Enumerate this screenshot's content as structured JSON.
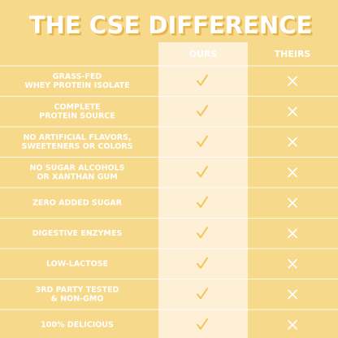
{
  "header": {
    "title": "THE CSE DIFFERENCE"
  },
  "columns": [
    "OURS",
    "THEIRS"
  ],
  "rows": [
    {
      "label": [
        "GRASS-FED",
        "WHEY PROTEIN ISOLATE"
      ]
    },
    {
      "label": [
        "COMPLETE",
        "PROTEIN SOURCE"
      ]
    },
    {
      "label": [
        "NO ARTIFICIAL FLAVORS,",
        "SWEETENERS OR COLORS"
      ]
    },
    {
      "label": [
        "NO SUGAR ALCOHOLS",
        "OR XANTHAN GUM"
      ]
    },
    {
      "label": [
        "ZERO ADDED SUGAR"
      ]
    },
    {
      "label": [
        "DIGESTIVE ENZYMES"
      ]
    },
    {
      "label": [
        "LOW-LACTOSE"
      ]
    },
    {
      "label": [
        "3RD PARTY TESTED",
        "& NON-GMO"
      ]
    },
    {
      "label": [
        "100% DELICIOUS"
      ]
    }
  ]
}
